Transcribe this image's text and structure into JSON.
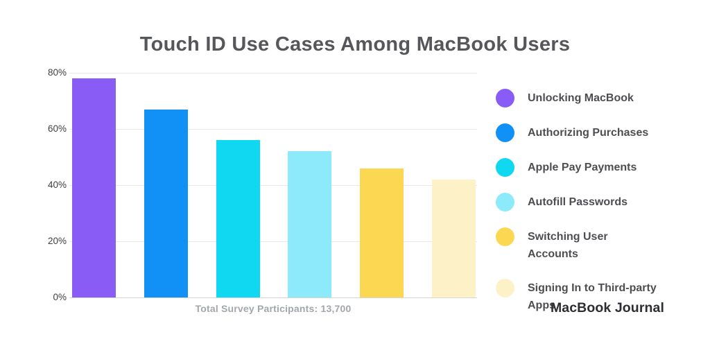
{
  "chart_data": {
    "type": "bar",
    "title": "Touch ID Use Cases Among MacBook Users",
    "categories": [
      "Unlocking MacBook",
      "Authorizing Purchases",
      "Apple Pay Payments",
      "Autofill Passwords",
      "Switching User Accounts",
      "Signing In to Third-party Apps"
    ],
    "values": [
      78,
      67,
      56,
      52,
      46,
      42
    ],
    "unit": "%",
    "bar_colors": [
      "#8a5cf6",
      "#1190f5",
      "#10d8f0",
      "#8ceafa",
      "#fcd852",
      "#fdf2c7"
    ],
    "xlabel": "",
    "ylabel": "",
    "ylim": [
      0,
      80
    ],
    "yticks": [
      "80%",
      "60%",
      "40%",
      "20%",
      "0%"
    ],
    "grid": true,
    "legend_position": "right"
  },
  "legend": {
    "items": [
      {
        "label": "Unlocking MacBook",
        "color": "#8a5cf6"
      },
      {
        "label": "Authorizing Purchases",
        "color": "#1190f5"
      },
      {
        "label": "Apple Pay Payments",
        "color": "#10d8f0"
      },
      {
        "label": "Autofill Passwords",
        "color": "#8ceafa"
      },
      {
        "label": "Switching User Accounts",
        "color": "#fcd852"
      },
      {
        "label": "Signing In to Third-party Apps",
        "color": "#fdf2c7"
      }
    ]
  },
  "footer": {
    "note": "Total Survey Participants: 13,700",
    "brand": "MacBook Journal"
  }
}
